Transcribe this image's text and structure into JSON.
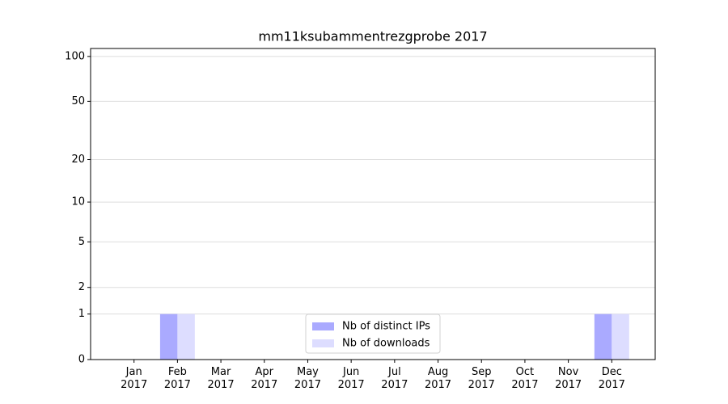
{
  "chart_data": {
    "type": "bar",
    "title": "mm11ksubammentrezgprobe 2017",
    "categories": [
      "Jan\n2017",
      "Feb\n2017",
      "Mar\n2017",
      "Apr\n2017",
      "May\n2017",
      "Jun\n2017",
      "Jul\n2017",
      "Aug\n2017",
      "Sep\n2017",
      "Oct\n2017",
      "Nov\n2017",
      "Dec\n2017"
    ],
    "series": [
      {
        "name": "Nb of distinct IPs",
        "color": "#aaaaff",
        "values": [
          0,
          1,
          0,
          0,
          0,
          0,
          0,
          0,
          0,
          0,
          0,
          1
        ]
      },
      {
        "name": "Nb of downloads",
        "color": "#ddddff",
        "values": [
          0,
          1,
          0,
          0,
          0,
          0,
          0,
          0,
          0,
          0,
          0,
          1
        ]
      }
    ],
    "yscale": "log1p",
    "ylim": [
      0,
      113
    ],
    "yticks": [
      0,
      1,
      2,
      5,
      10,
      20,
      50,
      100
    ],
    "grid": true,
    "legend": "lower center"
  }
}
